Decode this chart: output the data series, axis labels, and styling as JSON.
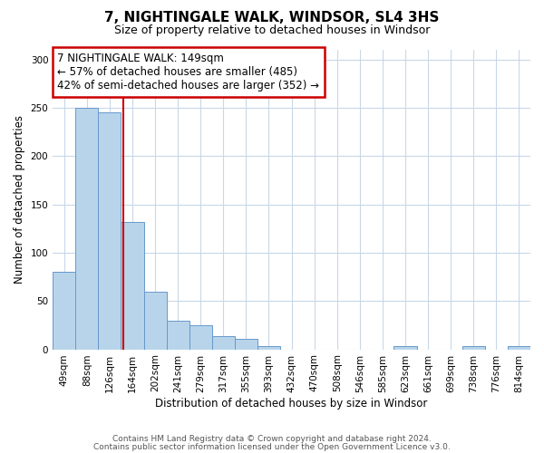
{
  "title": "7, NIGHTINGALE WALK, WINDSOR, SL4 3HS",
  "subtitle": "Size of property relative to detached houses in Windsor",
  "xlabel": "Distribution of detached houses by size in Windsor",
  "ylabel": "Number of detached properties",
  "bar_labels": [
    "49sqm",
    "88sqm",
    "126sqm",
    "164sqm",
    "202sqm",
    "241sqm",
    "279sqm",
    "317sqm",
    "355sqm",
    "393sqm",
    "432sqm",
    "470sqm",
    "508sqm",
    "546sqm",
    "585sqm",
    "623sqm",
    "661sqm",
    "699sqm",
    "738sqm",
    "776sqm",
    "814sqm"
  ],
  "bar_values": [
    80,
    250,
    245,
    132,
    60,
    30,
    25,
    14,
    11,
    3,
    0,
    0,
    0,
    0,
    0,
    3,
    0,
    0,
    3,
    0,
    3
  ],
  "bar_color": "#b8d4ea",
  "bar_edge_color": "#6699cc",
  "ylim": [
    0,
    310
  ],
  "yticks": [
    0,
    50,
    100,
    150,
    200,
    250,
    300
  ],
  "vline_x": 2.61,
  "annotation_title": "7 NIGHTINGALE WALK: 149sqm",
  "annotation_line1": "← 57% of detached houses are smaller (485)",
  "annotation_line2": "42% of semi-detached houses are larger (352) →",
  "annotation_box_color": "#ffffff",
  "annotation_box_edge_color": "#cc0000",
  "vline_color": "#cc0000",
  "footer1": "Contains HM Land Registry data © Crown copyright and database right 2024.",
  "footer2": "Contains public sector information licensed under the Open Government Licence v3.0.",
  "background_color": "#ffffff",
  "grid_color": "#c8d8e8",
  "title_fontsize": 11,
  "subtitle_fontsize": 9,
  "axis_label_fontsize": 8.5,
  "tick_fontsize": 7.5,
  "annot_fontsize": 8.5,
  "footer_fontsize": 6.5
}
